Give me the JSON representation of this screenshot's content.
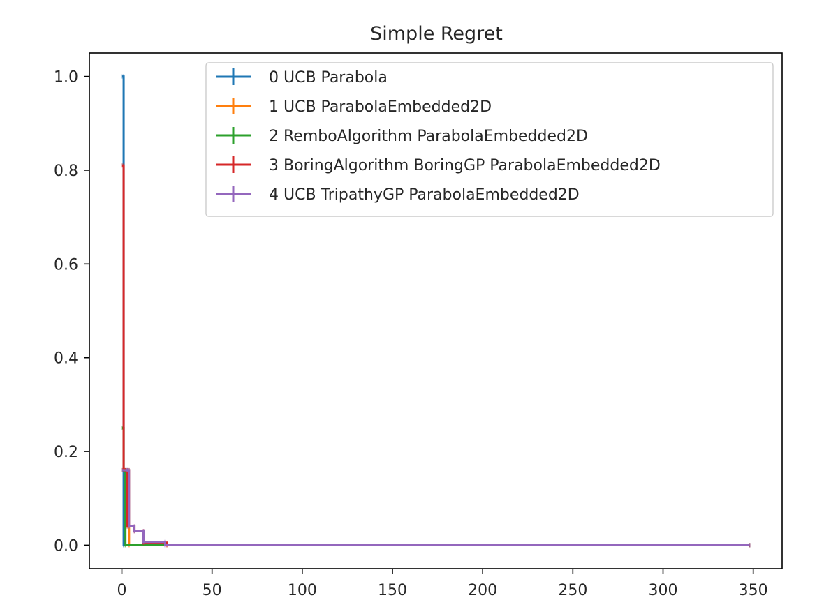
{
  "chart_data": {
    "type": "line",
    "title": "Simple Regret",
    "xlabel": "",
    "ylabel": "",
    "xlim": [
      -18,
      366
    ],
    "ylim": [
      -0.05,
      1.05
    ],
    "xticks": [
      0,
      50,
      100,
      150,
      200,
      250,
      300,
      350
    ],
    "yticks": [
      0.0,
      0.2,
      0.4,
      0.6,
      0.8,
      1.0
    ],
    "xtick_labels": [
      "0",
      "50",
      "100",
      "150",
      "200",
      "250",
      "300",
      "350"
    ],
    "ytick_labels": [
      "0.0",
      "0.2",
      "0.4",
      "0.6",
      "0.8",
      "1.0"
    ],
    "grid": false,
    "legend_position": "top-right",
    "series": [
      {
        "name": "0 UCB   Parabola",
        "color": "#1f77b4",
        "x": [
          0,
          1,
          1,
          348
        ],
        "y": [
          1.0,
          1.0,
          0.0,
          0.0
        ]
      },
      {
        "name": "1 UCB   ParabolaEmbedded2D",
        "color": "#ff7f0e",
        "x": [
          0,
          3,
          4,
          4,
          348
        ],
        "y": [
          0.16,
          0.16,
          0.16,
          0.0,
          0.0
        ]
      },
      {
        "name": "2 RemboAlgorithm   ParabolaEmbedded2D",
        "color": "#2ca02c",
        "x": [
          0,
          1,
          1,
          2,
          2,
          348
        ],
        "y": [
          0.25,
          0.25,
          0.16,
          0.16,
          0.0,
          0.0
        ]
      },
      {
        "name": "3 BoringAlgorithm BoringGP ParabolaEmbedded2D",
        "color": "#d62728",
        "x": [
          0,
          1,
          1,
          2,
          2,
          3,
          3,
          7,
          7,
          12,
          12,
          25,
          25,
          348
        ],
        "y": [
          0.81,
          0.81,
          0.16,
          0.16,
          0.16,
          0.16,
          0.04,
          0.04,
          0.03,
          0.03,
          0.005,
          0.005,
          0.0,
          0.0
        ]
      },
      {
        "name": "4 UCB TripathyGP ParabolaEmbedded2D",
        "color": "#9467bd",
        "x": [
          0,
          3,
          3,
          4,
          4,
          7,
          7,
          12,
          12,
          24,
          24,
          348
        ],
        "y": [
          0.16,
          0.16,
          0.16,
          0.16,
          0.04,
          0.04,
          0.03,
          0.03,
          0.007,
          0.007,
          0.0,
          0.0
        ]
      }
    ]
  }
}
